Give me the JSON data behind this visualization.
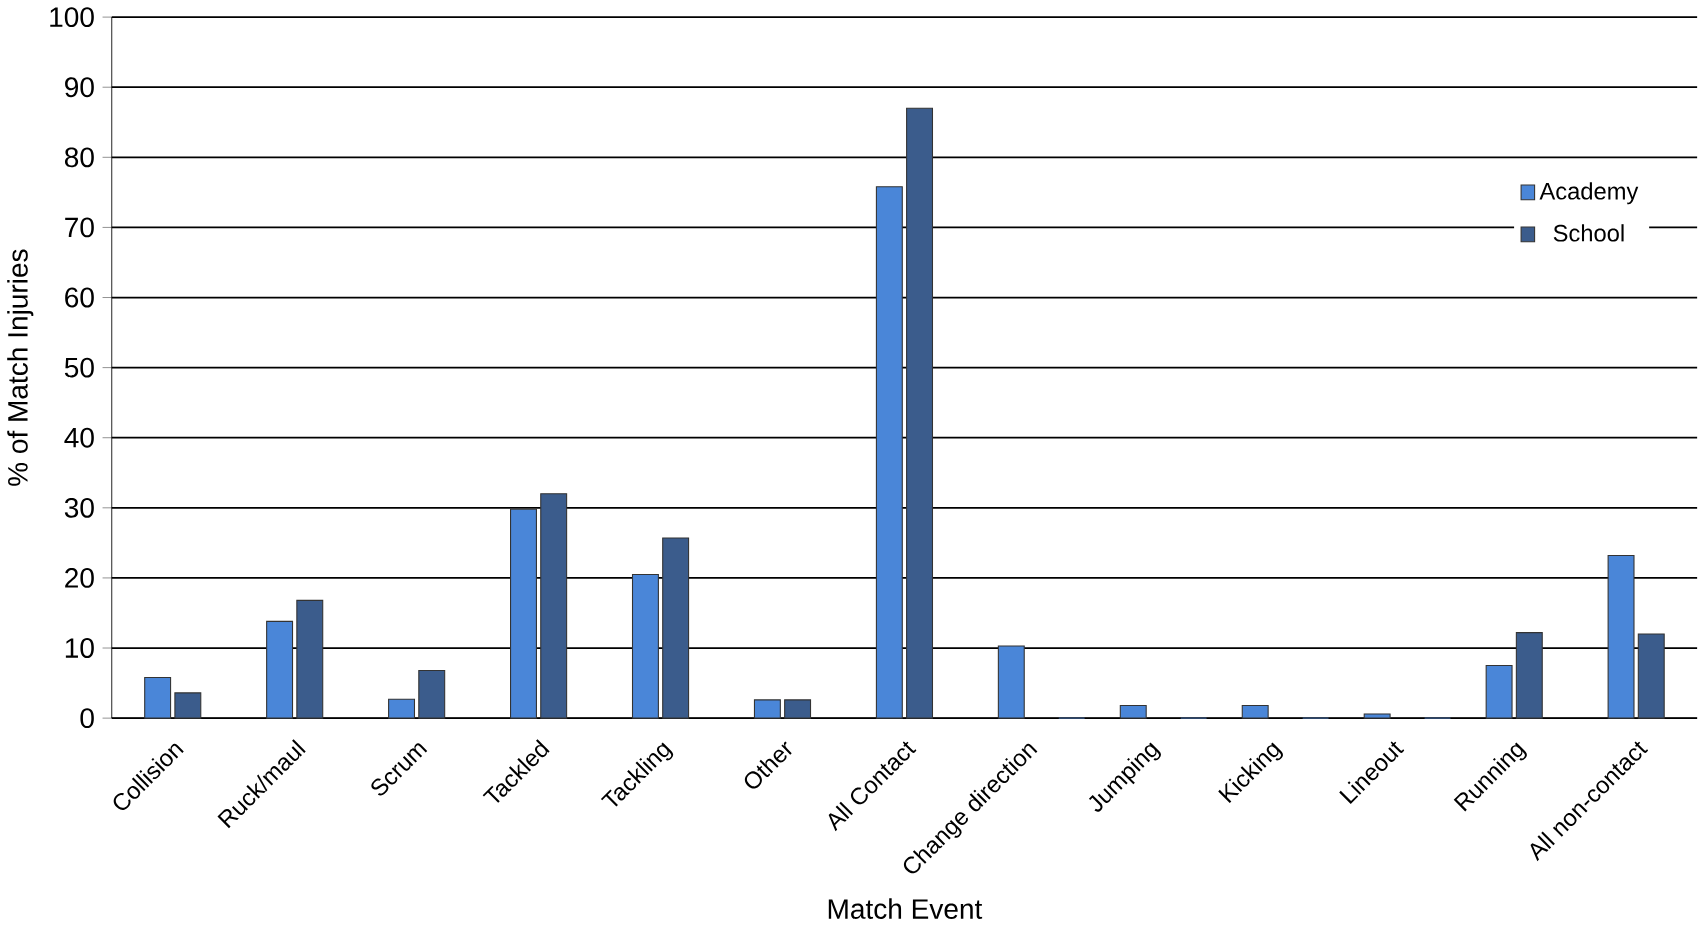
{
  "chart_data": {
    "type": "bar",
    "xlabel": "Match Event",
    "ylabel": "% of Match Injuries",
    "categories": [
      "Collision",
      "Ruck/maul",
      "Scrum",
      "Tackled",
      "Tackling",
      "Other",
      "All Contact",
      "Change direction",
      "Jumping",
      "Kicking",
      "Lineout",
      "Running",
      "All non-contact"
    ],
    "series": [
      {
        "name": "Academy",
        "color": "#4a86d8",
        "values": [
          5.8,
          13.8,
          2.7,
          29.8,
          20.5,
          2.6,
          75.8,
          10.3,
          1.8,
          1.8,
          0.6,
          7.5,
          23.2
        ]
      },
      {
        "name": "School",
        "color": "#3b5c8c",
        "values": [
          3.6,
          16.8,
          6.8,
          32,
          25.7,
          2.6,
          87,
          0,
          0,
          0,
          0,
          12.2,
          12
        ]
      }
    ],
    "ylim": [
      0,
      100
    ],
    "yticks": [
      0,
      10,
      20,
      30,
      40,
      50,
      60,
      70,
      80,
      90,
      100
    ],
    "grid": "y",
    "legend": "right"
  }
}
